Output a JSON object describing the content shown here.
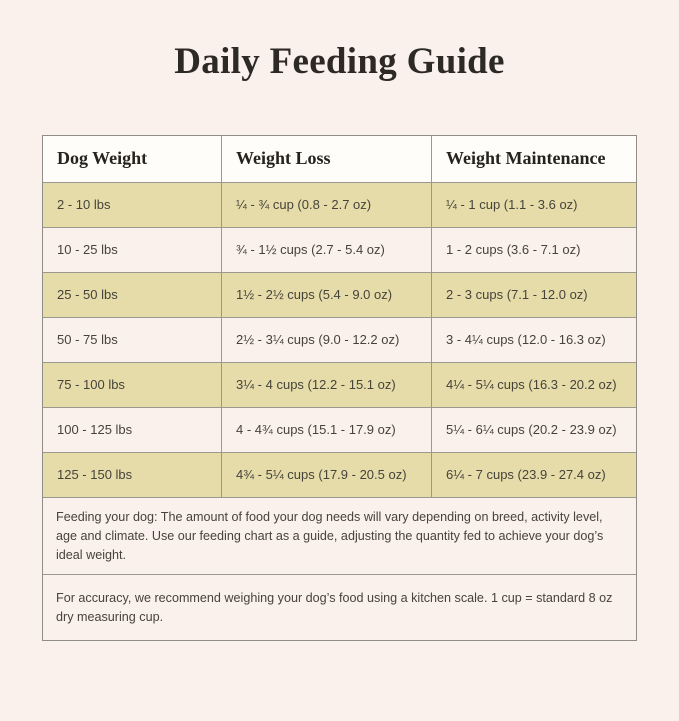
{
  "page": {
    "title": "Daily Feeding Guide",
    "background_color": "#faf0ec"
  },
  "chart_data": {
    "type": "table",
    "title": "Daily Feeding Guide",
    "columns": [
      "Dog Weight",
      "Weight Loss",
      "Weight Maintenance"
    ],
    "rows": [
      [
        "2 - 10 lbs",
        "¼ - ¾ cup (0.8 - 2.7 oz)",
        "¼ - 1 cup (1.1 - 3.6 oz)"
      ],
      [
        "10 - 25 lbs",
        "¾ - 1½ cups (2.7 - 5.4 oz)",
        "1 - 2 cups (3.6 - 7.1 oz)"
      ],
      [
        "25 - 50 lbs",
        "1½ - 2½ cups (5.4 - 9.0 oz)",
        "2 - 3 cups (7.1 - 12.0 oz)"
      ],
      [
        "50 - 75 lbs",
        "2½ - 3¼ cups (9.0 - 12.2 oz)",
        "3 - 4¼ cups (12.0 - 16.3 oz)"
      ],
      [
        "75 - 100 lbs",
        "3¼ - 4 cups (12.2 - 15.1 oz)",
        "4¼ - 5¼ cups (16.3 - 20.2 oz)"
      ],
      [
        "100 - 125 lbs",
        "4 - 4¾ cups (15.1 - 17.9 oz)",
        "5¼ - 6¼ cups (20.2 - 23.9 oz)"
      ],
      [
        "125 - 150 lbs",
        "4¾ - 5¼ cups (17.9 - 20.5 oz)",
        "6¼ - 7 cups (23.9 - 27.4 oz)"
      ]
    ],
    "notes": [
      "Feeding your dog: The amount of food your dog needs will vary depending on breed, activity level, age and climate. Use our feeding chart as a guide, adjusting the quantity fed to achieve your dog’s ideal weight.",
      "For accuracy, we recommend weighing your dog’s food using a kitchen scale. 1 cup = standard 8 oz dry measuring cup."
    ],
    "layout": {
      "row_striping_odd": "#e6dcaa",
      "row_striping_even": "#faf0ec",
      "header_background": "#fffdfa",
      "border_color": "#9b9890"
    }
  }
}
